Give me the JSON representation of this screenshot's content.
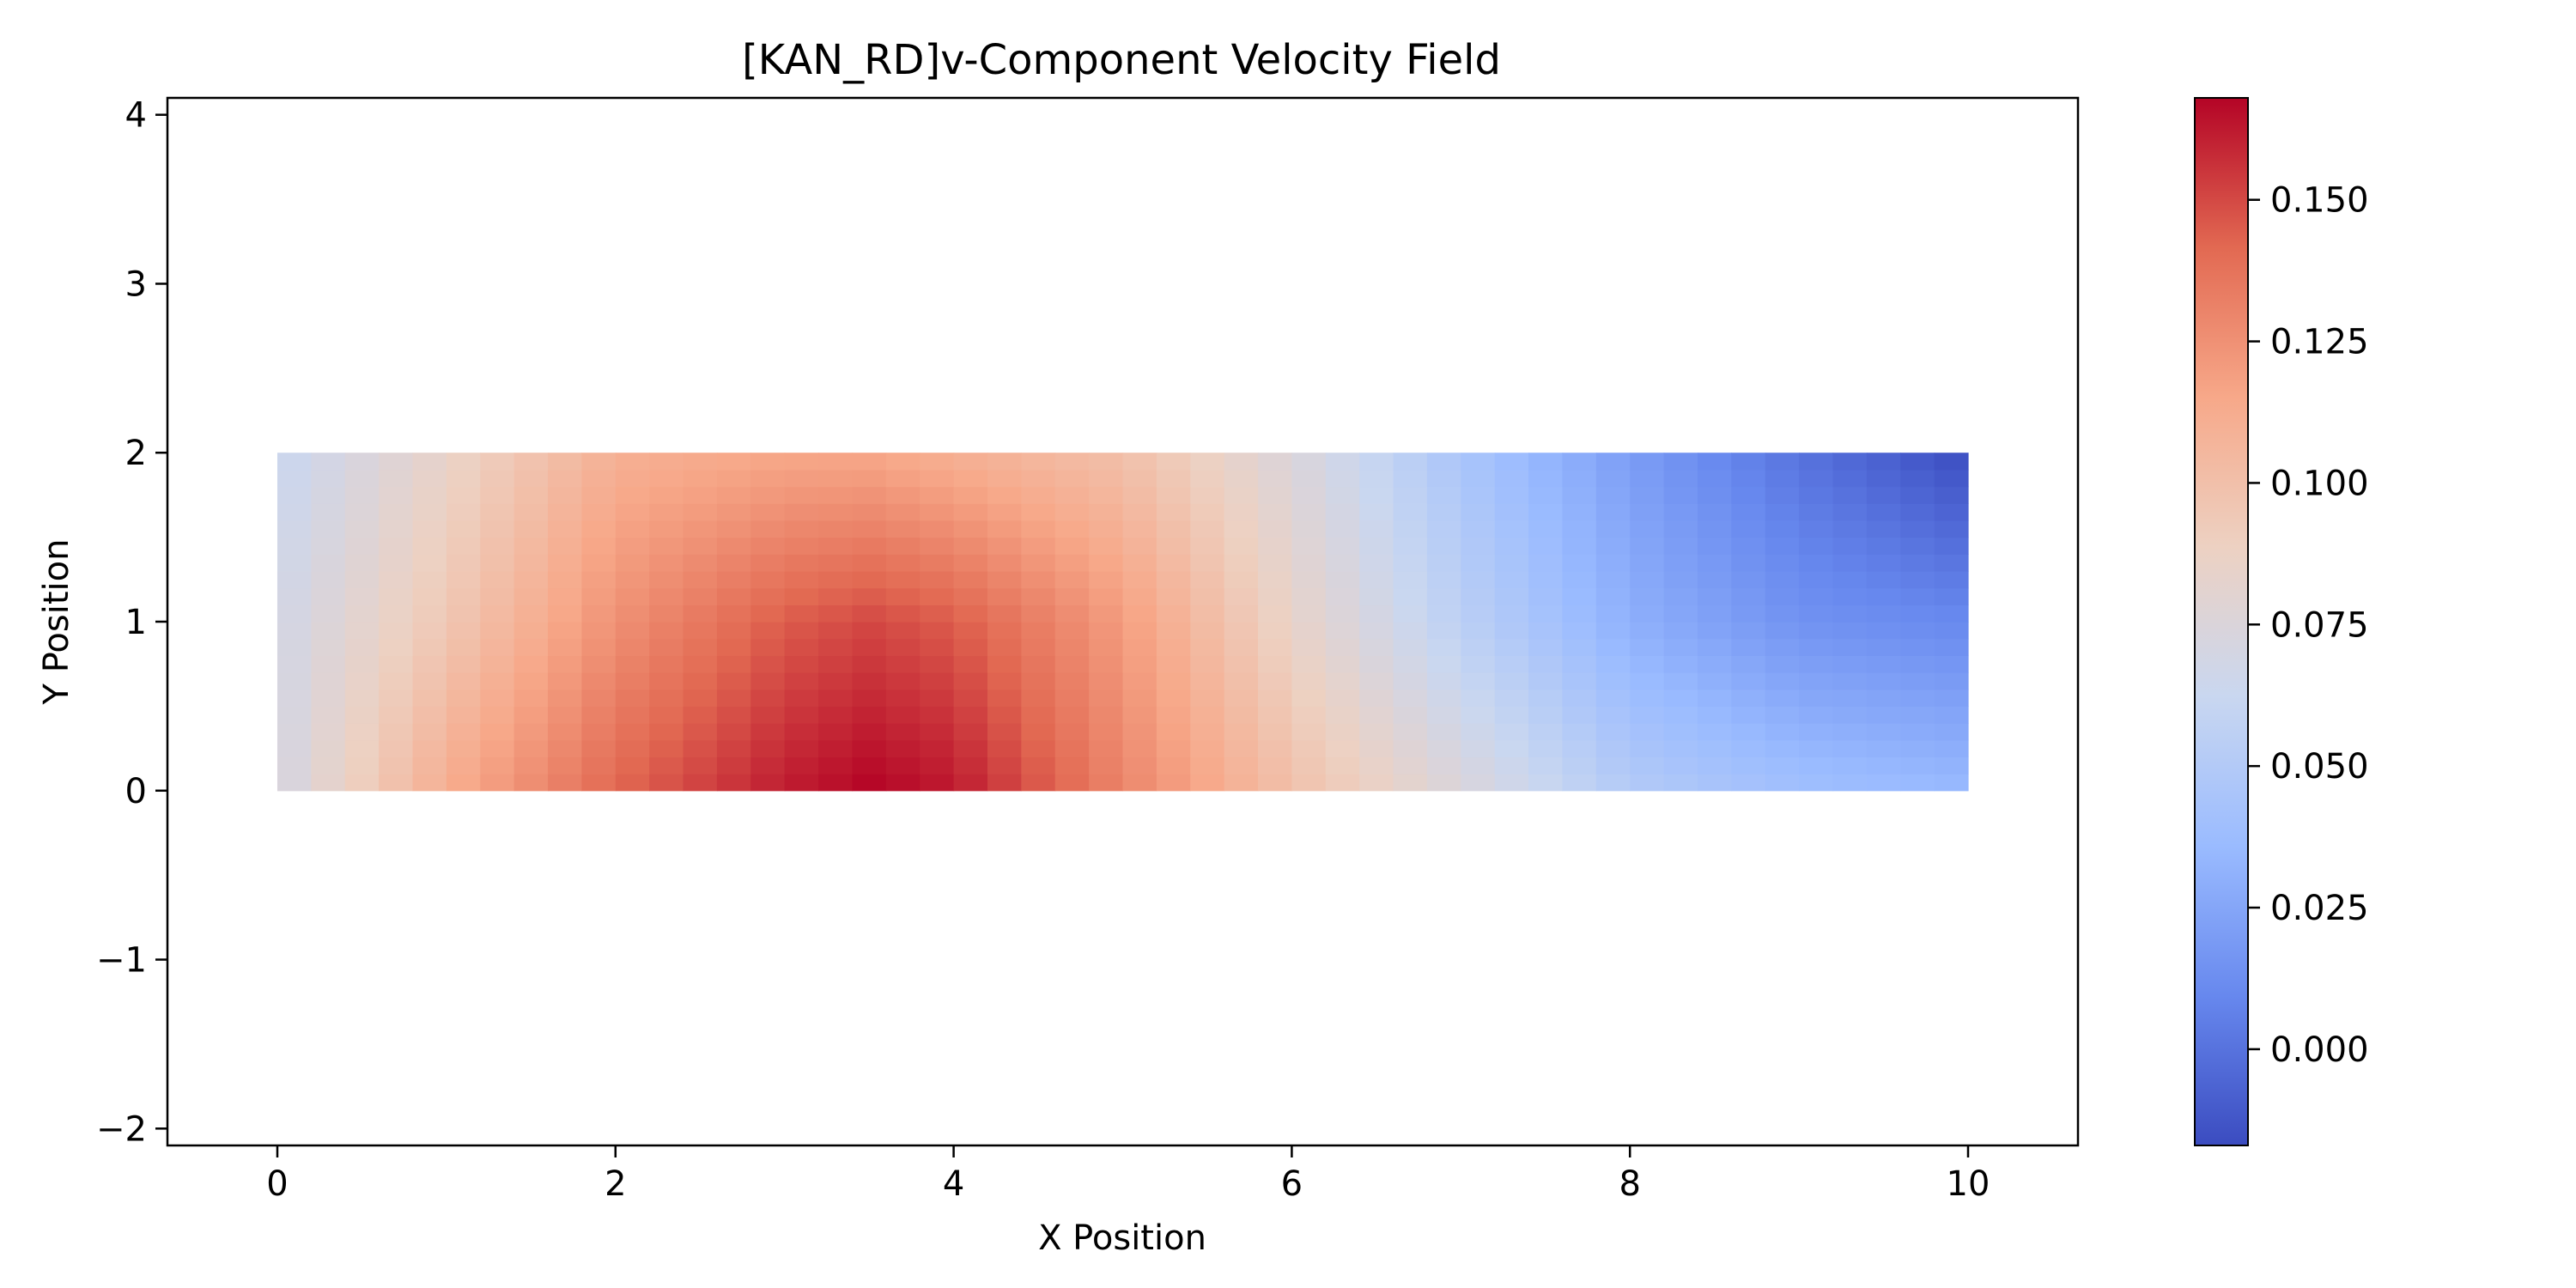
{
  "chart_data": {
    "type": "heatmap",
    "title": "[KAN_RD]v-Component Velocity Field",
    "xlabel": "X Position",
    "ylabel": "Y Position",
    "xlim": [
      -0.65,
      10.65
    ],
    "ylim": [
      -2.1,
      4.1
    ],
    "x_ticks": [
      0,
      2,
      4,
      6,
      8,
      10
    ],
    "x_tick_labels": [
      "0",
      "2",
      "4",
      "6",
      "8",
      "10"
    ],
    "y_ticks": [
      -2,
      -1,
      0,
      1,
      2,
      3,
      4
    ],
    "y_tick_labels": [
      "−2",
      "−1",
      "0",
      "1",
      "2",
      "3",
      "4"
    ],
    "grid": false,
    "domain": {
      "x": [
        0,
        10
      ],
      "y": [
        0,
        2
      ]
    },
    "grid_resolution": {
      "nx": 50,
      "ny": 20
    },
    "colormap": "coolwarm",
    "colorbar": {
      "range": [
        -0.017,
        0.168
      ],
      "ticks": [
        0.0,
        0.025,
        0.05,
        0.075,
        0.1,
        0.125,
        0.15
      ],
      "tick_labels": [
        "0.000",
        "0.025",
        "0.050",
        "0.075",
        "0.100",
        "0.125",
        "0.150"
      ],
      "stops": [
        "#3b4cc0",
        "#6788ee",
        "#9abbff",
        "#c9d7f0",
        "#edd1c2",
        "#f7a889",
        "#e26952",
        "#b40426"
      ]
    },
    "field_samples": {
      "x": [
        0,
        1,
        2,
        3,
        3.5,
        4,
        5,
        6,
        7,
        8,
        9,
        10
      ],
      "rows": [
        {
          "y": 0.0,
          "v": [
            0.07,
            0.112,
            0.142,
            0.162,
            0.168,
            0.163,
            0.13,
            0.1,
            0.075,
            0.05,
            0.04,
            0.035
          ]
        },
        {
          "y": 1.0,
          "v": [
            0.068,
            0.095,
            0.125,
            0.145,
            0.15,
            0.145,
            0.12,
            0.085,
            0.055,
            0.03,
            0.015,
            0.01
          ]
        },
        {
          "y": 2.0,
          "v": [
            0.062,
            0.085,
            0.11,
            0.115,
            0.115,
            0.11,
            0.1,
            0.075,
            0.045,
            0.02,
            0.0,
            -0.017
          ]
        }
      ]
    }
  }
}
